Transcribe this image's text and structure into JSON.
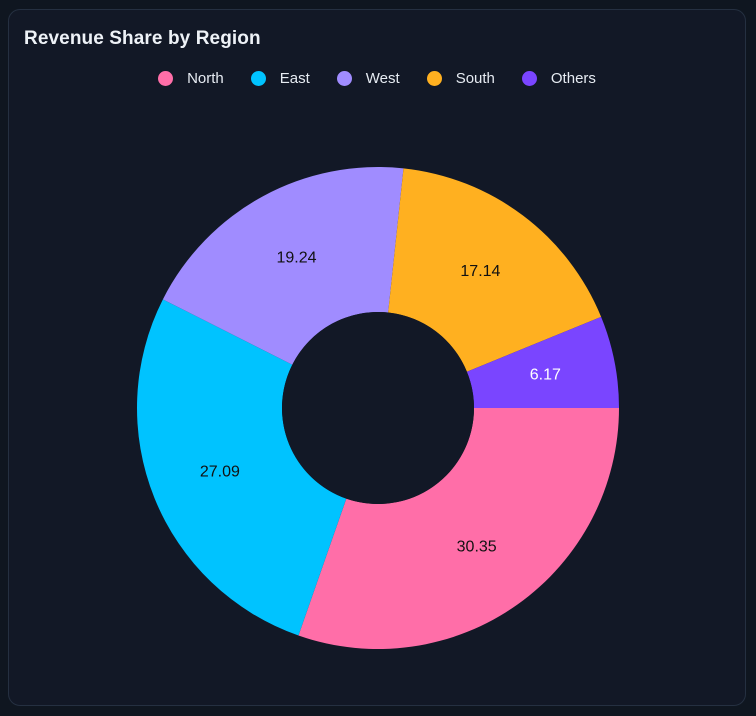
{
  "chart_data": {
    "type": "pie",
    "title": "Revenue Share by Region",
    "legend_position": "top-center",
    "donut": true,
    "slices": [
      {
        "label": "North",
        "value": 30.35,
        "color": "#ff6ea8",
        "label_color": "#111111"
      },
      {
        "label": "East",
        "value": 27.09,
        "color": "#00c3ff",
        "label_color": "#111111"
      },
      {
        "label": "West",
        "value": 19.24,
        "color": "#a08cff",
        "label_color": "#111111"
      },
      {
        "label": "South",
        "value": 17.14,
        "color": "#ffb020",
        "label_color": "#111111"
      },
      {
        "label": "Others",
        "value": 6.17,
        "color": "#7a45ff",
        "label_color": "#ffffff"
      }
    ]
  },
  "colors": {
    "background": "#121826",
    "center_hole": "#121826"
  }
}
